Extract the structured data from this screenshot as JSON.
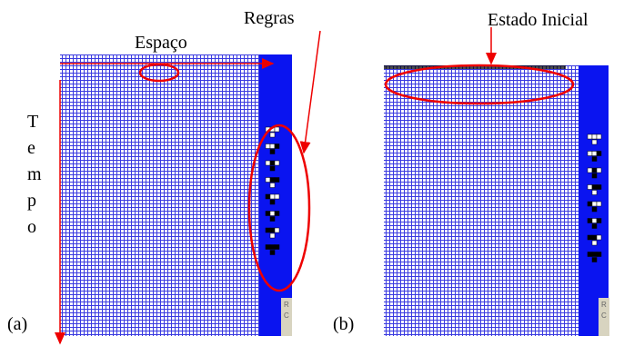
{
  "labels": {
    "rules": "Regras",
    "space": "Espaço",
    "time_letters": [
      "T",
      "e",
      "m",
      "p",
      "o"
    ],
    "initial_state": "Estado Inicial"
  },
  "panels": [
    {
      "label": "(a)",
      "buttons": [
        "R",
        "C"
      ]
    },
    {
      "label": "(b)",
      "buttons": [
        "R",
        "C"
      ]
    }
  ]
}
